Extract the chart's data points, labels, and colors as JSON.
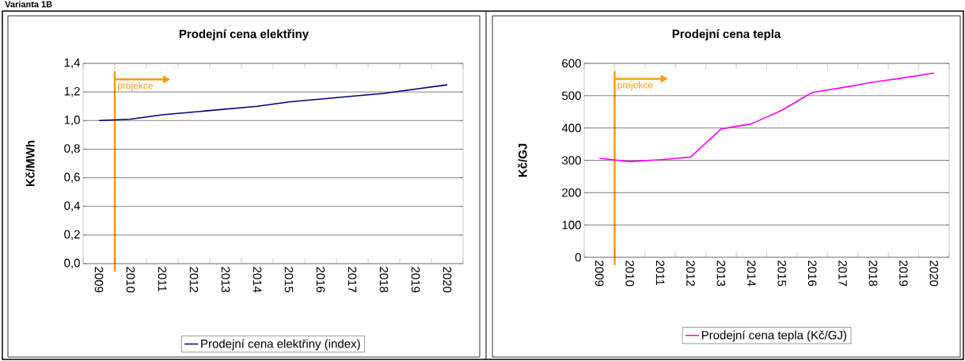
{
  "chart_data": [
    {
      "type": "line",
      "title": "Prodejní cena elektřiny",
      "ylabel": "Kč/MWh",
      "annotations": [
        "Varianta 1B",
        "projekce"
      ],
      "categories": [
        "2009",
        "2010",
        "2011",
        "2012",
        "2013",
        "2014",
        "2015",
        "2016",
        "2017",
        "2018",
        "2019",
        "2020"
      ],
      "series": [
        {
          "name": "Prodejní cena elektřiny (index)",
          "color": "#000080",
          "values": [
            1.0,
            1.01,
            1.04,
            1.06,
            1.08,
            1.1,
            1.13,
            1.15,
            1.17,
            1.19,
            1.22,
            1.25
          ]
        }
      ],
      "ylim": [
        0,
        1.4
      ],
      "yticks": [
        {
          "value": 0,
          "label": "0,0"
        },
        {
          "value": 0.2,
          "label": "0,2"
        },
        {
          "value": 0.4,
          "label": "0,4"
        },
        {
          "value": 0.6,
          "label": "0,6"
        },
        {
          "value": 0.8,
          "label": "0,8"
        },
        {
          "value": 1.0,
          "label": "1,0"
        },
        {
          "value": 1.2,
          "label": "1,2"
        },
        {
          "value": 1.4,
          "label": "1,4"
        }
      ],
      "grid": "y",
      "legend": "bottom"
    },
    {
      "type": "line",
      "title": "Prodejní cena tepla",
      "ylabel": "Kč/GJ",
      "annotations": [
        "projekce"
      ],
      "categories": [
        "2009",
        "2010",
        "2011",
        "2012",
        "2013",
        "2014",
        "2015",
        "2016",
        "2017",
        "2018",
        "2019",
        "2020"
      ],
      "series": [
        {
          "name": "Prodejní cena tepla (Kč/GJ)",
          "color": "#ff00ff",
          "values": [
            306,
            296,
            302,
            310,
            397,
            413,
            455,
            510,
            525,
            542,
            555,
            570
          ]
        }
      ],
      "ylim": [
        0,
        600
      ],
      "yticks": [
        0,
        100,
        200,
        300,
        400,
        500,
        600
      ],
      "grid": "y",
      "legend": "bottom"
    }
  ]
}
